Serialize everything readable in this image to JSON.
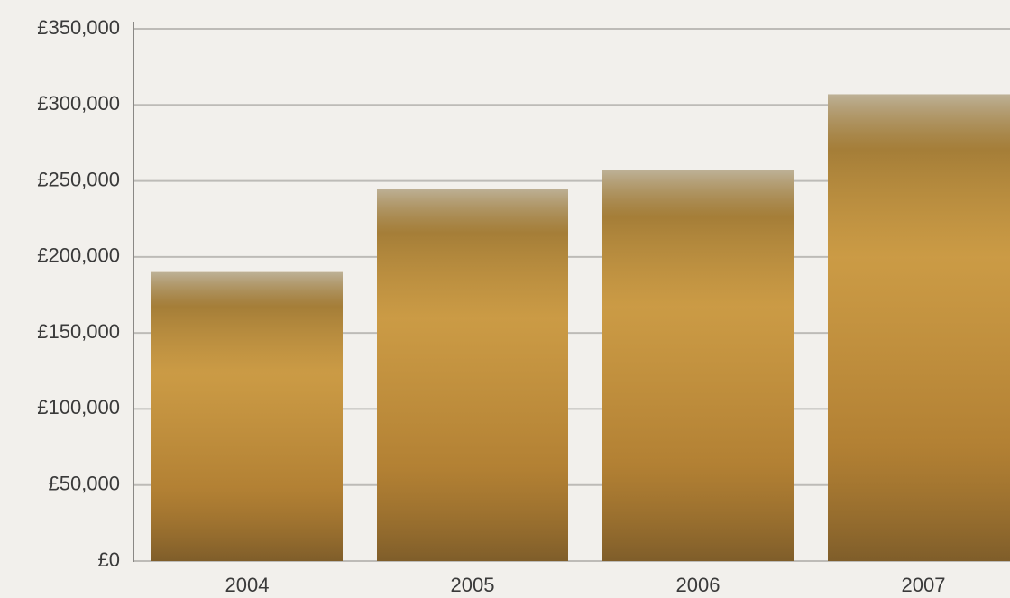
{
  "chart_data": {
    "type": "bar",
    "categories": [
      "2004",
      "2005",
      "2006",
      "2007"
    ],
    "values": [
      190000,
      245000,
      257000,
      307000
    ],
    "color": "#c4913c",
    "ylim": [
      0,
      350000
    ],
    "yticks": [
      {
        "value": 0,
        "label": "£0"
      },
      {
        "value": 50000,
        "label": "£50,000"
      },
      {
        "value": 100000,
        "label": "£100,000"
      },
      {
        "value": 150000,
        "label": "£150,000"
      },
      {
        "value": 200000,
        "label": "£200,000"
      },
      {
        "value": 250000,
        "label": "£250,000"
      },
      {
        "value": 300000,
        "label": "£300,000"
      },
      {
        "value": 350000,
        "label": "£350,000"
      }
    ],
    "grid": true
  }
}
